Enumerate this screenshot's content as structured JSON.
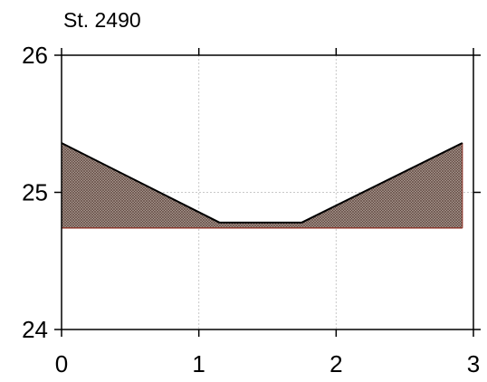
{
  "chart_data": {
    "type": "area",
    "title": "St. 2490",
    "xlabel": "",
    "ylabel": "",
    "xlim": [
      0,
      3
    ],
    "ylim": [
      24,
      26
    ],
    "x_ticks": [
      "0",
      "1",
      "2",
      "3"
    ],
    "y_ticks": [
      "24",
      "25",
      "26"
    ],
    "grid": true,
    "fill_color": "#9b8a82",
    "outline_color": "#000000",
    "baseline_color": "#8b2a1e",
    "baseline_y": 24.74,
    "series": [
      {
        "x": [
          0,
          1.15,
          1.75,
          2.92
        ],
        "y": [
          25.36,
          24.78,
          24.78,
          25.36
        ]
      }
    ]
  }
}
